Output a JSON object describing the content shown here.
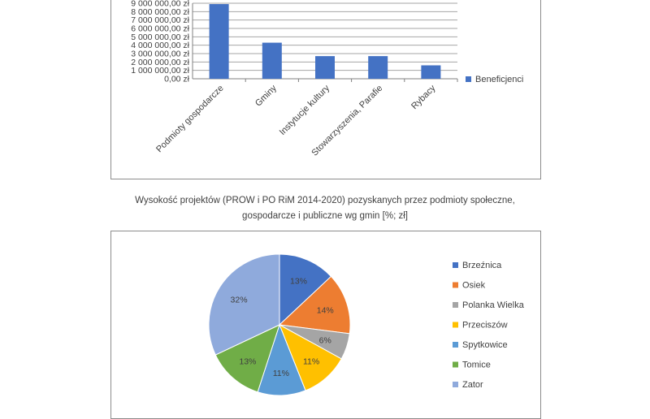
{
  "caption": {
    "line1": "Wysokość projektów (PROW i PO RiM 2014-2020) pozyskanych przez podmioty społeczne,",
    "line2": "gospodarcze i publiczne wg gmin [%; zł]"
  },
  "colors": {
    "bar": "#4472C4",
    "grid": "#a6a6a6",
    "pie": [
      "#4472C4",
      "#ED7D31",
      "#A5A5A5",
      "#FFC000",
      "#5B9BD5",
      "#70AD47",
      "#8FAADC"
    ]
  },
  "chart_data": [
    {
      "type": "bar",
      "categories": [
        "Podmioty gospodarcze",
        "Gminy",
        "Instytucje kultury",
        "Stowarzyszenia, Parafie",
        "Rybacy"
      ],
      "series": [
        {
          "name": "Beneficjenci",
          "values": [
            8900000,
            4300000,
            2700000,
            2700000,
            1600000
          ]
        }
      ],
      "y_ticks": [
        "0,00 zł",
        "1 000 000,00 zł",
        "2 000 000,00 zł",
        "3 000 000,00 zł",
        "4 000 000,00 zł",
        "5 000 000,00 zł",
        "6 000 000,00 zł",
        "7 000 000,00 zł",
        "8 000 000,00 zł",
        "9 000 000,00 zł"
      ],
      "ylim": [
        0,
        9000000
      ],
      "grid": true,
      "legend": "right"
    },
    {
      "type": "pie",
      "title": "",
      "labels": [
        "Brzeźnica",
        "Osiek",
        "Polanka Wielka",
        "Przeciszów",
        "Spytkowice",
        "Tomice",
        "Zator"
      ],
      "values": [
        13,
        14,
        6,
        11,
        11,
        13,
        32
      ],
      "value_labels": [
        "13%",
        "14%",
        "6%",
        "11%",
        "11%",
        "13%",
        "32%"
      ],
      "legend": "right"
    }
  ]
}
